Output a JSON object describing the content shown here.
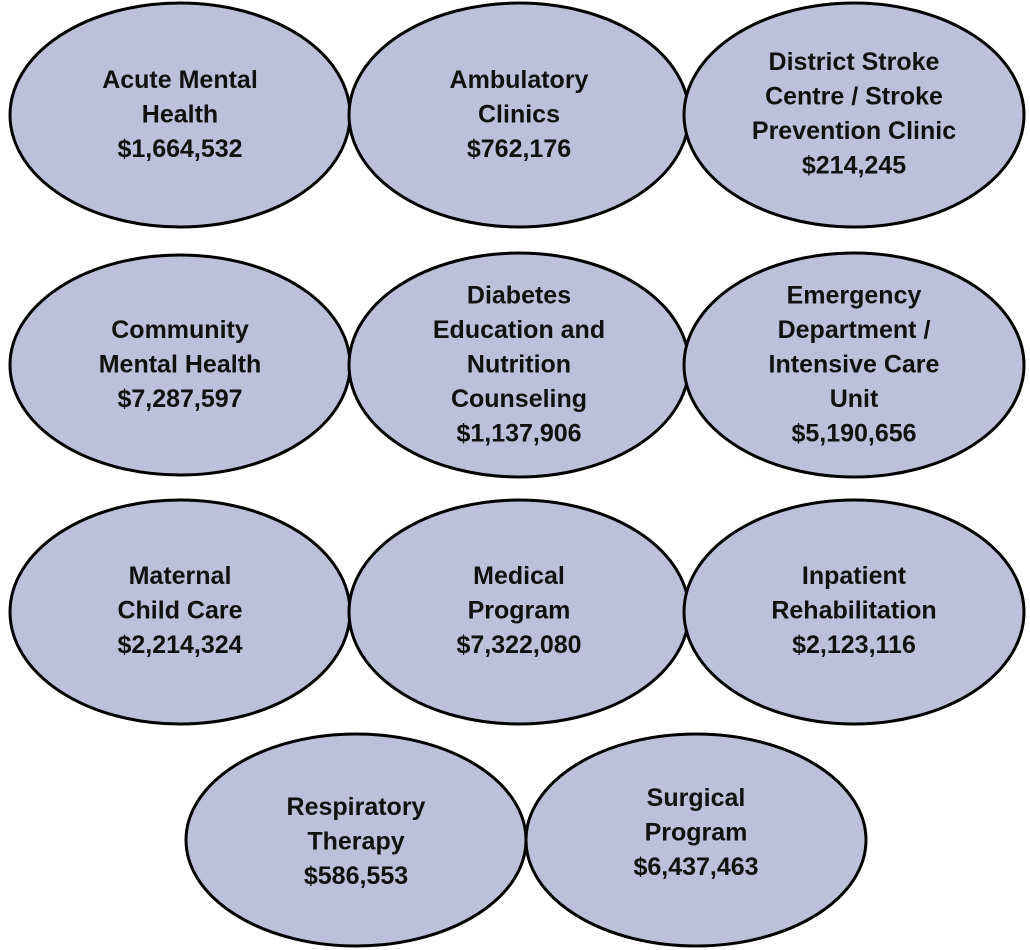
{
  "nodes": [
    {
      "label": [
        "Acute Mental",
        "Health"
      ],
      "amount": "$1,664,532"
    },
    {
      "label": [
        "Ambulatory",
        "Clinics"
      ],
      "amount": "$762,176"
    },
    {
      "label": [
        "District Stroke",
        "Centre / Stroke",
        "Prevention Clinic"
      ],
      "amount": "$214,245"
    },
    {
      "label": [
        "Community",
        "Mental Health"
      ],
      "amount": "$7,287,597"
    },
    {
      "label": [
        "Diabetes",
        "Education and",
        "Nutrition",
        "Counseling"
      ],
      "amount": "$1,137,906"
    },
    {
      "label": [
        "Emergency",
        "Department /",
        "Intensive Care",
        "Unit"
      ],
      "amount": "$5,190,656"
    },
    {
      "label": [
        "Maternal",
        "Child Care"
      ],
      "amount": "$2,214,324"
    },
    {
      "label": [
        "Medical",
        "Program"
      ],
      "amount": "$7,322,080"
    },
    {
      "label": [
        "Inpatient",
        "Rehabilitation"
      ],
      "amount": "$2,123,116"
    },
    {
      "label": [
        "Respiratory",
        "Therapy"
      ],
      "amount": "$586,553"
    },
    {
      "label": [
        "Surgical",
        "Program"
      ],
      "amount": "$6,437,463"
    }
  ]
}
